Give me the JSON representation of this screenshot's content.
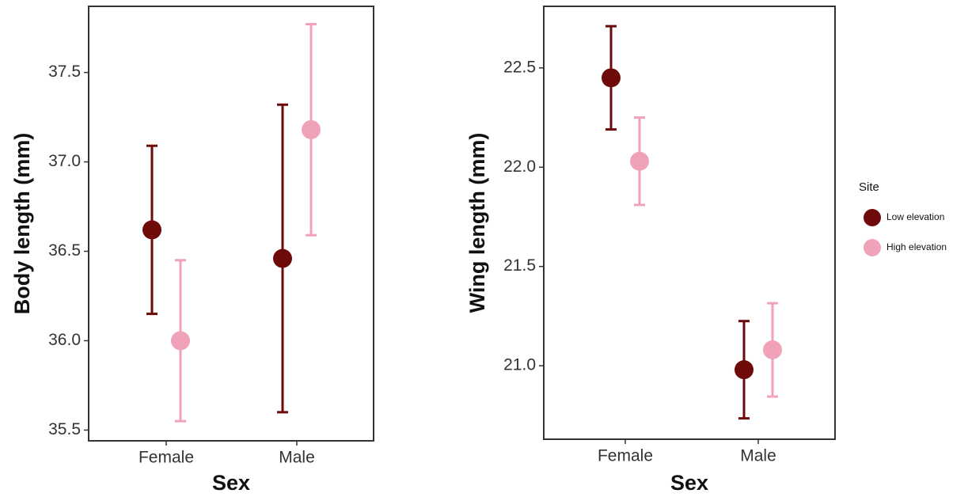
{
  "chart_data": [
    {
      "type": "errorbar",
      "x_label": "Sex",
      "y_label": "Body length (mm)",
      "categories": [
        "Female",
        "Male"
      ],
      "series": [
        {
          "name": "Low elevation",
          "color": "#6e0a0a",
          "values": [
            36.62,
            36.46
          ],
          "errors": [
            0.47,
            0.86
          ]
        },
        {
          "name": "High elevation",
          "color": "#f0a3b8",
          "values": [
            36.0,
            37.18
          ],
          "errors": [
            0.45,
            0.59
          ]
        }
      ],
      "ylim": [
        35.44,
        37.87
      ],
      "yticks": [
        35.5,
        36.0,
        36.5,
        37.0,
        37.5
      ]
    },
    {
      "type": "errorbar",
      "x_label": "Sex",
      "y_label": "Wing length (mm)",
      "categories": [
        "Female",
        "Male"
      ],
      "series": [
        {
          "name": "Low elevation",
          "color": "#6e0a0a",
          "values": [
            22.45,
            20.98
          ],
          "errors": [
            0.26,
            0.245
          ]
        },
        {
          "name": "High elevation",
          "color": "#f0a3b8",
          "values": [
            22.03,
            21.08
          ],
          "errors": [
            0.22,
            0.235
          ]
        }
      ],
      "ylim": [
        20.63,
        22.81
      ],
      "yticks": [
        21.0,
        21.5,
        22.0,
        22.5
      ],
      "legend_title": "Site",
      "legend": "right"
    }
  ]
}
